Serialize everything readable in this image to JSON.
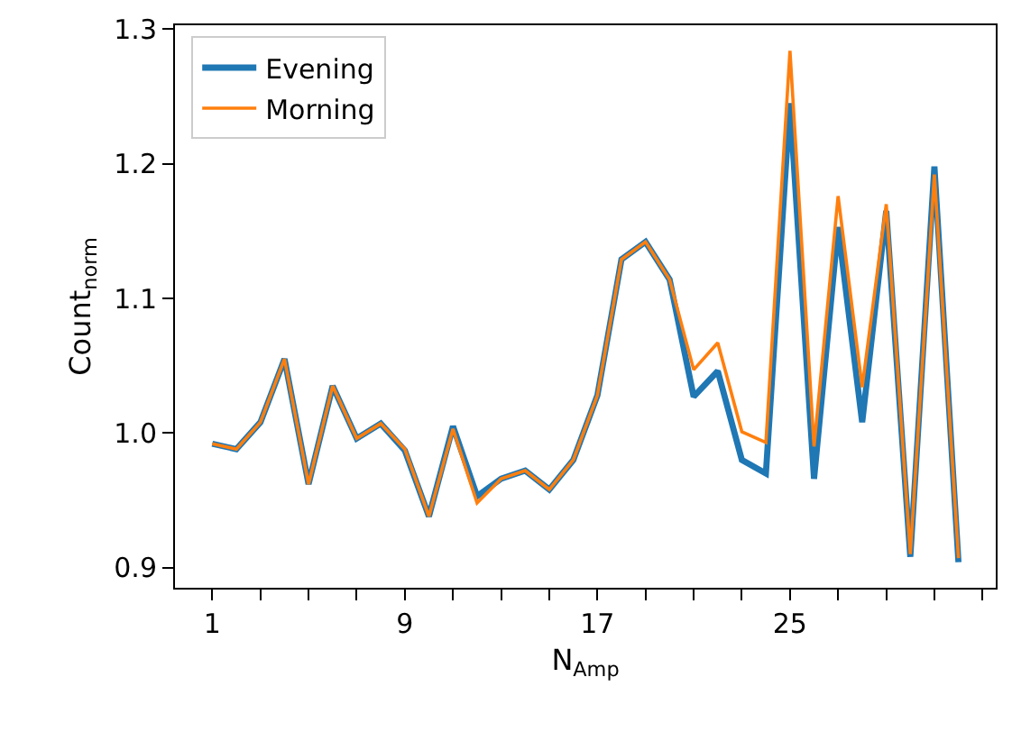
{
  "chart_data": {
    "type": "line",
    "xlabel": "N$_{Amp}$",
    "ylabel": "Count$_{norm}$",
    "x": [
      1,
      2,
      3,
      4,
      5,
      6,
      7,
      8,
      9,
      10,
      11,
      12,
      13,
      14,
      15,
      16,
      17,
      18,
      19,
      20,
      21,
      22,
      23,
      24,
      25,
      26,
      27,
      28,
      29,
      30,
      31,
      32
    ],
    "series": [
      {
        "name": "Evening",
        "color": "#1f77b4",
        "values": [
          0.992,
          0.988,
          1.008,
          1.055,
          0.962,
          1.035,
          0.996,
          1.007,
          0.987,
          0.938,
          1.005,
          0.953,
          0.966,
          0.972,
          0.958,
          0.98,
          1.028,
          1.129,
          1.142,
          1.114,
          1.027,
          1.046,
          0.98,
          0.97,
          1.245,
          0.966,
          1.153,
          1.008,
          1.165,
          0.908,
          1.198,
          0.904
        ]
      },
      {
        "name": "Morning",
        "color": "#ff7f0e",
        "values": [
          0.992,
          0.988,
          1.008,
          1.055,
          0.962,
          1.035,
          0.996,
          1.007,
          0.988,
          0.938,
          1.003,
          0.948,
          0.966,
          0.972,
          0.958,
          0.98,
          1.028,
          1.129,
          1.142,
          1.114,
          1.047,
          1.067,
          1.001,
          0.993,
          1.284,
          0.99,
          1.176,
          1.034,
          1.17,
          0.91,
          1.192,
          0.907
        ]
      }
    ],
    "xlim": [
      -0.55,
      33.55
    ],
    "xticks": [
      1,
      {
        "value": 3,
        "label": null
      },
      {
        "value": 5,
        "label": null
      },
      {
        "value": 7,
        "label": null
      },
      9,
      {
        "value": 11,
        "label": null
      },
      {
        "value": 13,
        "label": null
      },
      {
        "value": 15,
        "label": null
      },
      17,
      {
        "value": 19,
        "label": null
      },
      {
        "value": 21,
        "label": null
      },
      {
        "value": 23,
        "label": null
      },
      25,
      {
        "value": 27,
        "label": null
      },
      {
        "value": 29,
        "label": null
      },
      {
        "value": 31,
        "label": null
      },
      {
        "value": 33,
        "label": null
      }
    ],
    "ylim": [
      0.885,
      1.303
    ],
    "yticks": [
      {
        "value": 0.9,
        "label": "0.9"
      },
      {
        "value": 1.0,
        "label": "1.0"
      },
      {
        "value": 1.1,
        "label": "1.1"
      },
      {
        "value": 1.2,
        "label": "1.2"
      },
      {
        "value": 1.3,
        "label": "1.3"
      }
    ],
    "legend": "top left",
    "marker": "none",
    "line_style": "solid"
  }
}
